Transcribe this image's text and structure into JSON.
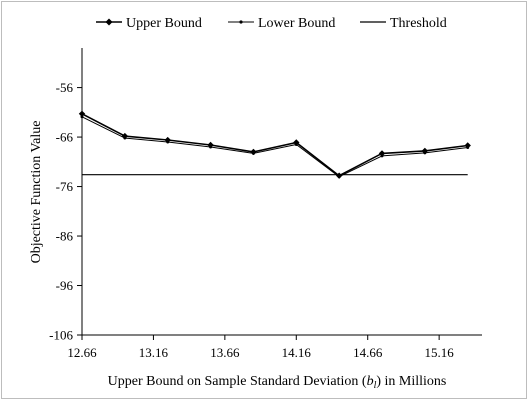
{
  "chart_data": {
    "type": "line",
    "xlabel_prefix": "Upper Bound on Sample Standard Deviation (",
    "xlabel_var": "b",
    "xlabel_sub": "l",
    "xlabel_suffix": ") in Millions",
    "ylabel": "Objective Function Value",
    "xlim": [
      12.66,
      15.46
    ],
    "ylim": [
      -106,
      -48
    ],
    "x_tick_values": [
      12.66,
      13.16,
      13.66,
      14.16,
      14.66,
      15.16
    ],
    "x_tick_labels": [
      "12.66",
      "13.16",
      "13.66",
      "14.16",
      "14.66",
      "15.16"
    ],
    "y_tick_values": [
      -56,
      -66,
      -76,
      -86,
      -96,
      -106
    ],
    "y_tick_labels": [
      "-56",
      "-66",
      "-76",
      "-86",
      "-96",
      "-106"
    ],
    "grid": false,
    "legend_position": "top",
    "x": [
      12.66,
      12.96,
      13.26,
      13.56,
      13.86,
      14.16,
      14.46,
      14.76,
      15.06,
      15.36
    ],
    "series": [
      {
        "name": "Upper Bound",
        "marker": "diamond",
        "values": [
          -61.3,
          -65.8,
          -66.6,
          -67.6,
          -69.0,
          -67.1,
          -73.8,
          -69.3,
          -68.8,
          -67.7
        ]
      },
      {
        "name": "Lower Bound",
        "marker": "dot",
        "values": [
          -61.9,
          -66.2,
          -67.0,
          -68.0,
          -69.3,
          -67.5,
          -74.0,
          -69.8,
          -69.2,
          -68.1
        ]
      },
      {
        "name": "Threshold",
        "marker": "none",
        "values": [
          -73.6,
          -73.6,
          -73.6,
          -73.6,
          -73.6,
          -73.6,
          -73.6,
          -73.6,
          -73.6,
          -73.6
        ]
      }
    ]
  }
}
